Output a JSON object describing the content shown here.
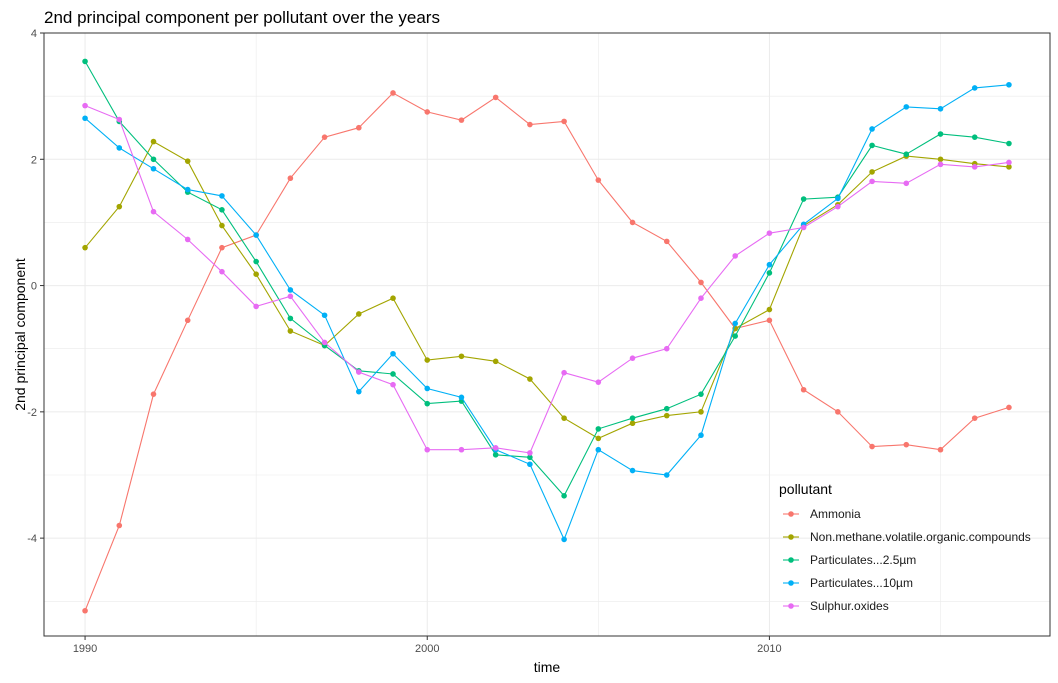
{
  "chart_data": {
    "type": "line",
    "title": "2nd principal component per pollutant over the years",
    "xlabel": "time",
    "ylabel": "2nd principal component",
    "xlim": [
      1988.8,
      2018.2
    ],
    "ylim": [
      -5.55,
      4.0
    ],
    "x_ticks": [
      1990,
      2000,
      2010
    ],
    "y_ticks": [
      -4,
      -2,
      0,
      2,
      4
    ],
    "grid": true,
    "legend_title": "pollutant",
    "legend_position": "bottom-right",
    "x": [
      1990,
      1991,
      1992,
      1993,
      1994,
      1995,
      1996,
      1997,
      1998,
      1999,
      2000,
      2001,
      2002,
      2003,
      2004,
      2005,
      2006,
      2007,
      2008,
      2009,
      2010,
      2011,
      2012,
      2013,
      2014,
      2015,
      2016,
      2017
    ],
    "series": [
      {
        "name": "Ammonia",
        "color": "#F8766D",
        "values": [
          -5.15,
          -3.8,
          -1.72,
          -0.55,
          0.6,
          0.8,
          1.7,
          2.35,
          2.5,
          3.05,
          2.75,
          2.62,
          2.98,
          2.55,
          2.6,
          1.67,
          1.0,
          0.7,
          0.05,
          -0.68,
          -0.55,
          -1.65,
          -2.0,
          -2.55,
          -2.52,
          -2.6,
          -2.1,
          -1.93
        ]
      },
      {
        "name": "Non.methane.volatile.organic.compounds",
        "color": "#A3A500",
        "values": [
          0.6,
          1.25,
          2.28,
          1.97,
          0.95,
          0.18,
          -0.72,
          -0.95,
          -0.45,
          -0.2,
          -1.18,
          -1.12,
          -1.2,
          -1.48,
          -2.1,
          -2.42,
          -2.18,
          -2.06,
          -2.0,
          -0.68,
          -0.38,
          0.95,
          1.28,
          1.8,
          2.05,
          2.0,
          1.93,
          1.88
        ]
      },
      {
        "name": "Particulates...2.5µm",
        "color": "#00BF7D",
        "values": [
          3.55,
          2.6,
          2.0,
          1.48,
          1.2,
          0.38,
          -0.52,
          -0.95,
          -1.35,
          -1.4,
          -1.87,
          -1.83,
          -2.68,
          -2.72,
          -3.33,
          -2.27,
          -2.1,
          -1.95,
          -1.72,
          -0.8,
          0.2,
          1.37,
          1.4,
          2.22,
          2.08,
          2.4,
          2.35,
          2.25
        ]
      },
      {
        "name": "Particulates...10µm",
        "color": "#00B0F6",
        "values": [
          2.65,
          2.18,
          1.85,
          1.52,
          1.42,
          0.8,
          -0.07,
          -0.47,
          -1.68,
          -1.08,
          -1.63,
          -1.77,
          -2.6,
          -2.83,
          -4.02,
          -2.6,
          -2.93,
          -3.0,
          -2.37,
          -0.6,
          0.33,
          0.97,
          1.38,
          2.48,
          2.83,
          2.8,
          3.13,
          3.18
        ]
      },
      {
        "name": "Sulphur.oxides",
        "color": "#E76BF3",
        "values": [
          2.85,
          2.63,
          1.17,
          0.73,
          0.22,
          -0.33,
          -0.17,
          -0.9,
          -1.37,
          -1.57,
          -2.6,
          -2.6,
          -2.57,
          -2.65,
          -1.38,
          -1.53,
          -1.15,
          -1.0,
          -0.2,
          0.47,
          0.83,
          0.92,
          1.25,
          1.65,
          1.62,
          1.92,
          1.88,
          1.95
        ]
      }
    ]
  }
}
